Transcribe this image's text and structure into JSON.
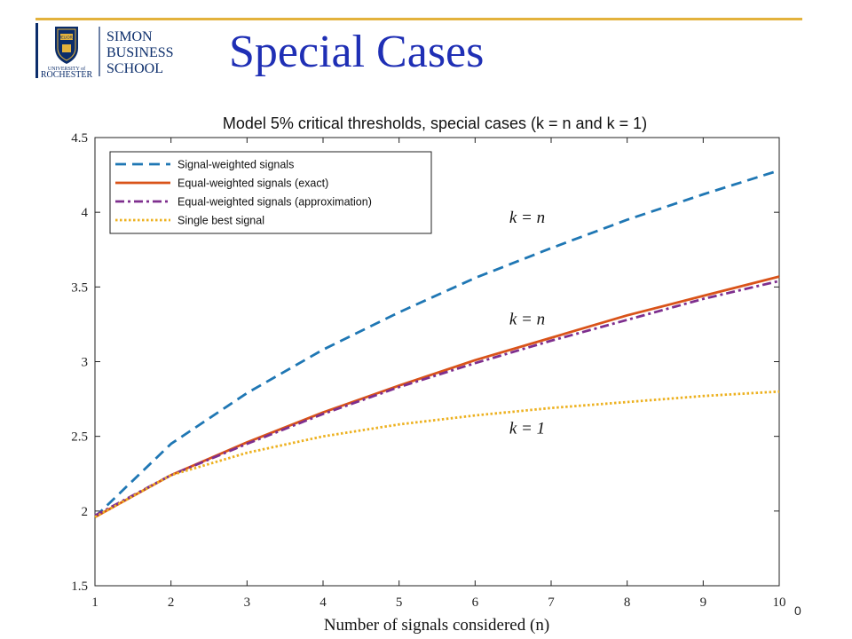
{
  "slide": {
    "title": "Special Cases",
    "page_number": "0"
  },
  "logo": {
    "line1": "SIMON",
    "line2": "BUSINESS",
    "line3": "SCHOOL",
    "university_small": "UNIVERSITY of",
    "university_name": "ROCHESTER",
    "seal_motto": "MELIORA"
  },
  "colors": {
    "title": "#1f2fb5",
    "header_rule": "#e3b23c",
    "brand_navy": "#0b2d6b"
  },
  "chart_data": {
    "type": "line",
    "title": "Model 5% critical thresholds, special cases (k = n and k = 1)",
    "xlabel": "Number of signals considered (n)",
    "ylabel": "",
    "xlim": [
      1,
      10
    ],
    "ylim": [
      1.5,
      4.5
    ],
    "x_ticks": [
      1,
      2,
      3,
      4,
      5,
      6,
      7,
      8,
      9,
      10
    ],
    "y_ticks": [
      1.5,
      2,
      2.5,
      3,
      3.5,
      4,
      4.5
    ],
    "y_tick_labels": [
      "1.5",
      "2",
      "2.5",
      "3",
      "3.5",
      "4",
      "4.5"
    ],
    "grid": false,
    "legend_position": "top-left",
    "x": [
      1,
      2,
      3,
      4,
      5,
      6,
      7,
      8,
      9,
      10
    ],
    "series": [
      {
        "name": "Signal-weighted signals",
        "color": "#1f77b4",
        "style": "dashed",
        "values": [
          1.96,
          2.45,
          2.79,
          3.08,
          3.33,
          3.56,
          3.76,
          3.95,
          4.12,
          4.28
        ]
      },
      {
        "name": "Equal-weighted signals (exact)",
        "color": "#d95319",
        "style": "solid",
        "values": [
          1.96,
          2.24,
          2.46,
          2.66,
          2.84,
          3.01,
          3.16,
          3.31,
          3.44,
          3.57
        ]
      },
      {
        "name": "Equal-weighted signals (approximation)",
        "color": "#7e2f8e",
        "style": "dashdot",
        "values": [
          1.97,
          2.24,
          2.45,
          2.65,
          2.83,
          2.99,
          3.14,
          3.28,
          3.42,
          3.54
        ]
      },
      {
        "name": "Single best signal",
        "color": "#edb120",
        "style": "dotted",
        "values": [
          1.96,
          2.24,
          2.39,
          2.5,
          2.58,
          2.64,
          2.69,
          2.73,
          2.77,
          2.8
        ]
      }
    ],
    "annotations": [
      {
        "text": "k = n",
        "x": 6.45,
        "y": 3.93
      },
      {
        "text": "k = n",
        "x": 6.45,
        "y": 3.25
      },
      {
        "text": "k = 1",
        "x": 6.45,
        "y": 2.52
      }
    ]
  }
}
